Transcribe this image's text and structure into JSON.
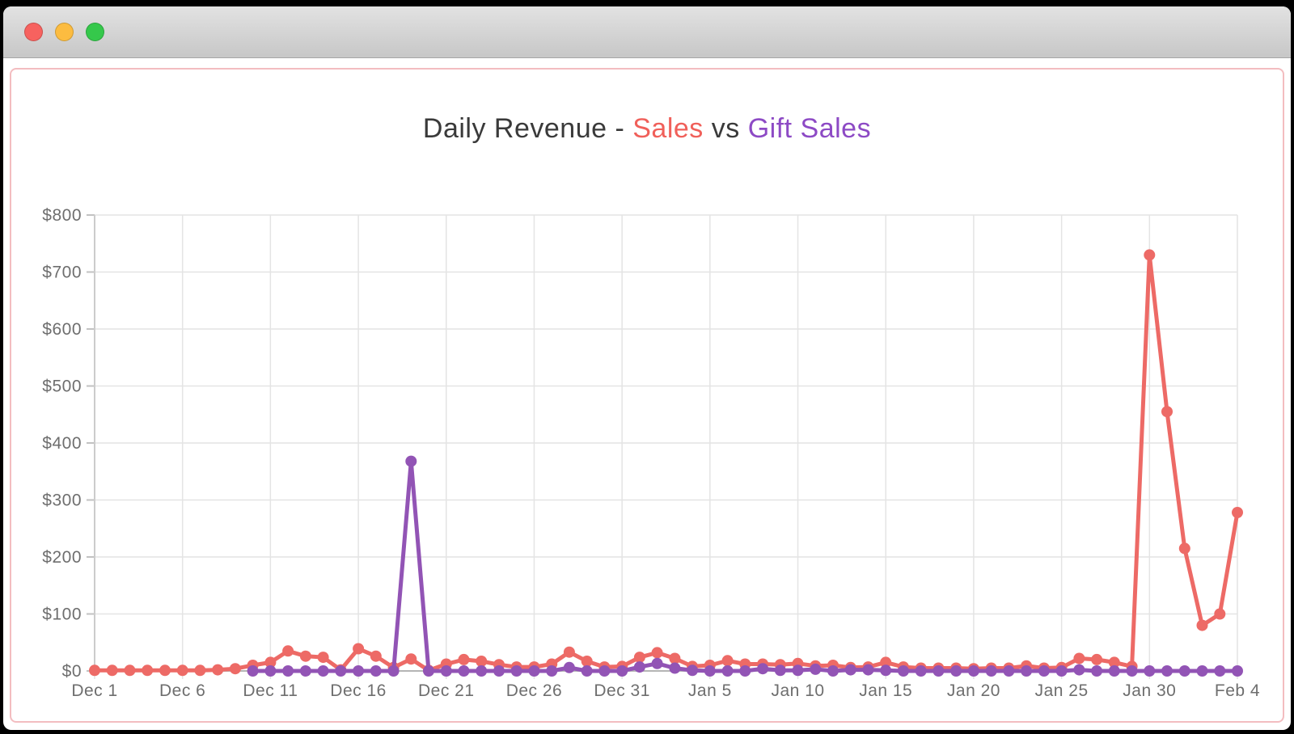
{
  "window": {
    "controls": [
      {
        "name": "close",
        "color": "#f7625f"
      },
      {
        "name": "minimize",
        "color": "#fcbc40"
      },
      {
        "name": "zoom",
        "color": "#35c84b"
      }
    ]
  },
  "title": {
    "prefix": "Daily Revenue - ",
    "sales": "Sales",
    "vs": " vs ",
    "gift": "Gift Sales"
  },
  "colors": {
    "sales_line": "#ed6a66",
    "gift_line": "#9254b5",
    "sales_title": "#f0605a",
    "gift_title": "#8d4ac5",
    "grid": "#e4e4e4",
    "axis": "#b5b5b5",
    "label": "#6e6e6e",
    "card_border": "#f3bdc0"
  },
  "chart_data": {
    "type": "line",
    "title": "Daily Revenue - Sales vs Gift Sales",
    "grid": true,
    "legend_position": "in-title",
    "ylim": [
      0,
      800
    ],
    "y_tick_values": [
      0,
      100,
      200,
      300,
      400,
      500,
      600,
      700,
      800
    ],
    "y_tick_labels": [
      "$0",
      "$100",
      "$200",
      "$300",
      "$400",
      "$500",
      "$600",
      "$700",
      "$800"
    ],
    "x_tick_every": 5,
    "x_tick_labels": [
      "Dec 1",
      "Dec 6",
      "Dec 11",
      "Dec 16",
      "Dec 21",
      "Dec 26",
      "Dec 31",
      "Jan 5",
      "Jan 10",
      "Jan 15",
      "Jan 20",
      "Jan 25",
      "Jan 30",
      "Feb 4"
    ],
    "x": [
      "Dec 1",
      "Dec 2",
      "Dec 3",
      "Dec 4",
      "Dec 5",
      "Dec 6",
      "Dec 7",
      "Dec 8",
      "Dec 9",
      "Dec 10",
      "Dec 11",
      "Dec 12",
      "Dec 13",
      "Dec 14",
      "Dec 15",
      "Dec 16",
      "Dec 17",
      "Dec 18",
      "Dec 19",
      "Dec 20",
      "Dec 21",
      "Dec 22",
      "Dec 23",
      "Dec 24",
      "Dec 25",
      "Dec 26",
      "Dec 27",
      "Dec 28",
      "Dec 29",
      "Dec 30",
      "Dec 31",
      "Jan 1",
      "Jan 2",
      "Jan 3",
      "Jan 4",
      "Jan 5",
      "Jan 6",
      "Jan 7",
      "Jan 8",
      "Jan 9",
      "Jan 10",
      "Jan 11",
      "Jan 12",
      "Jan 13",
      "Jan 14",
      "Jan 15",
      "Jan 16",
      "Jan 17",
      "Jan 18",
      "Jan 19",
      "Jan 20",
      "Jan 21",
      "Jan 22",
      "Jan 23",
      "Jan 24",
      "Jan 25",
      "Jan 26",
      "Jan 27",
      "Jan 28",
      "Jan 29",
      "Jan 30",
      "Jan 31",
      "Feb 1",
      "Feb 2",
      "Feb 3",
      "Feb 4"
    ],
    "series": [
      {
        "name": "Sales",
        "color": "#ed6a66",
        "values": [
          1,
          1,
          1,
          1,
          1,
          1,
          1,
          2,
          4,
          10,
          15,
          35,
          26,
          24,
          2,
          39,
          26,
          6,
          21,
          1,
          12,
          20,
          17,
          11,
          7,
          7,
          12,
          33,
          17,
          7,
          8,
          24,
          32,
          22,
          8,
          10,
          18,
          12,
          12,
          11,
          13,
          9,
          10,
          6,
          7,
          15,
          7,
          5,
          5,
          5,
          4,
          5,
          5,
          9,
          5,
          6,
          22,
          20,
          15,
          8,
          730,
          455,
          215,
          80,
          100,
          278
        ]
      },
      {
        "name": "Gift Sales",
        "color": "#9254b5",
        "values": [
          null,
          null,
          null,
          null,
          null,
          null,
          null,
          null,
          null,
          0,
          0,
          0,
          0,
          0,
          0,
          0,
          0,
          0,
          368,
          0,
          0,
          0,
          0,
          0,
          0,
          0,
          0,
          6,
          0,
          0,
          0,
          7,
          13,
          5,
          1,
          0,
          0,
          0,
          4,
          1,
          1,
          3,
          0,
          2,
          2,
          1,
          0,
          0,
          0,
          0,
          0,
          0,
          0,
          0,
          0,
          0,
          2,
          0,
          0,
          0,
          0,
          0,
          0,
          0,
          0,
          0
        ]
      }
    ]
  }
}
